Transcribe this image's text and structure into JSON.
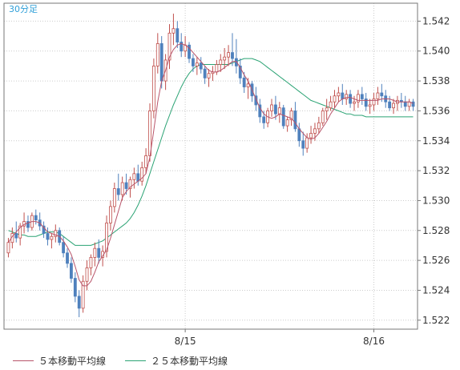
{
  "chart_data": {
    "type": "candlestick",
    "timeframe_label": "30分足",
    "y_ticks": [
      "1.542",
      "1.540",
      "1.538",
      "1.536",
      "1.534",
      "1.532",
      "1.530",
      "1.528",
      "1.526",
      "1.524",
      "1.522"
    ],
    "ylim": [
      1.5214,
      1.5432
    ],
    "x_ticks": [
      {
        "label": "8/15",
        "index": 45
      },
      {
        "label": "8/16",
        "index": 93
      }
    ],
    "candle_count": 104,
    "colors": {
      "up": "#c0504d",
      "down": "#4f81bd",
      "ma5": "#b8546a",
      "ma25": "#2ba374",
      "grid": "#cccccc",
      "frame": "#777777",
      "label": "#2f9fd8"
    },
    "candles": [
      [
        1.5265,
        1.5275,
        1.5262,
        1.5272
      ],
      [
        1.5272,
        1.5282,
        1.5268,
        1.5278
      ],
      [
        1.5278,
        1.5286,
        1.5272,
        1.5275
      ],
      [
        1.5275,
        1.5285,
        1.527,
        1.5283
      ],
      [
        1.5283,
        1.5292,
        1.5278,
        1.5286
      ],
      [
        1.5286,
        1.529,
        1.5279,
        1.5282
      ],
      [
        1.5282,
        1.5292,
        1.528,
        1.529
      ],
      [
        1.529,
        1.5294,
        1.5284,
        1.5287
      ],
      [
        1.5287,
        1.5292,
        1.528,
        1.5283
      ],
      [
        1.5283,
        1.5286,
        1.5275,
        1.5278
      ],
      [
        1.5278,
        1.5282,
        1.527,
        1.5274
      ],
      [
        1.5274,
        1.5278,
        1.5268,
        1.5276
      ],
      [
        1.5276,
        1.5284,
        1.5272,
        1.528
      ],
      [
        1.528,
        1.5282,
        1.527,
        1.5272
      ],
      [
        1.5272,
        1.5276,
        1.5262,
        1.5265
      ],
      [
        1.5265,
        1.5268,
        1.5255,
        1.5258
      ],
      [
        1.5258,
        1.5262,
        1.5245,
        1.5248
      ],
      [
        1.5248,
        1.5252,
        1.5232,
        1.5236
      ],
      [
        1.5236,
        1.524,
        1.5222,
        1.5228
      ],
      [
        1.5228,
        1.525,
        1.5225,
        1.5246
      ],
      [
        1.5246,
        1.526,
        1.524,
        1.5255
      ],
      [
        1.5255,
        1.5264,
        1.525,
        1.5262
      ],
      [
        1.5262,
        1.5272,
        1.5256,
        1.5268
      ],
      [
        1.5268,
        1.5274,
        1.5258,
        1.5262
      ],
      [
        1.5262,
        1.527,
        1.5256,
        1.5266
      ],
      [
        1.5266,
        1.529,
        1.5262,
        1.5285
      ],
      [
        1.5285,
        1.53,
        1.528,
        1.5296
      ],
      [
        1.5296,
        1.5312,
        1.5292,
        1.5308
      ],
      [
        1.5308,
        1.5318,
        1.53,
        1.5304
      ],
      [
        1.5304,
        1.5316,
        1.53,
        1.5312
      ],
      [
        1.5312,
        1.5318,
        1.5304,
        1.5308
      ],
      [
        1.5308,
        1.5316,
        1.5302,
        1.5314
      ],
      [
        1.5314,
        1.5322,
        1.5308,
        1.5318
      ],
      [
        1.5318,
        1.5324,
        1.531,
        1.5313
      ],
      [
        1.5313,
        1.5326,
        1.531,
        1.5322
      ],
      [
        1.5322,
        1.5335,
        1.5318,
        1.533
      ],
      [
        1.533,
        1.5365,
        1.5326,
        1.536
      ],
      [
        1.536,
        1.5395,
        1.5355,
        1.539
      ],
      [
        1.539,
        1.5412,
        1.5385,
        1.5405
      ],
      [
        1.5405,
        1.541,
        1.5375,
        1.538
      ],
      [
        1.538,
        1.5398,
        1.5374,
        1.5394
      ],
      [
        1.5394,
        1.5418,
        1.5388,
        1.5412
      ],
      [
        1.5412,
        1.5425,
        1.5404,
        1.5415
      ],
      [
        1.5415,
        1.542,
        1.5402,
        1.5406
      ],
      [
        1.5406,
        1.5412,
        1.5396,
        1.54
      ],
      [
        1.54,
        1.541,
        1.5396,
        1.5404
      ],
      [
        1.5404,
        1.5406,
        1.5392,
        1.5395
      ],
      [
        1.5395,
        1.5398,
        1.5386,
        1.539
      ],
      [
        1.539,
        1.5396,
        1.5384,
        1.5392
      ],
      [
        1.5392,
        1.5396,
        1.5385,
        1.5388
      ],
      [
        1.5388,
        1.539,
        1.5378,
        1.5382
      ],
      [
        1.5382,
        1.5388,
        1.5376,
        1.5385
      ],
      [
        1.5385,
        1.539,
        1.538,
        1.5386
      ],
      [
        1.5386,
        1.5394,
        1.5384,
        1.5391
      ],
      [
        1.5391,
        1.5398,
        1.5386,
        1.5394
      ],
      [
        1.5394,
        1.5402,
        1.5388,
        1.5396
      ],
      [
        1.5396,
        1.5404,
        1.539,
        1.5399
      ],
      [
        1.5399,
        1.5412,
        1.539,
        1.5395
      ],
      [
        1.5395,
        1.5408,
        1.5385,
        1.539
      ],
      [
        1.539,
        1.5395,
        1.5378,
        1.5382
      ],
      [
        1.5382,
        1.5386,
        1.5372,
        1.5376
      ],
      [
        1.5376,
        1.5382,
        1.5368,
        1.5378
      ],
      [
        1.5378,
        1.538,
        1.5366,
        1.537
      ],
      [
        1.537,
        1.5376,
        1.536,
        1.5364
      ],
      [
        1.5364,
        1.5368,
        1.5352,
        1.5356
      ],
      [
        1.5356,
        1.536,
        1.5348,
        1.5352
      ],
      [
        1.5352,
        1.5362,
        1.5349,
        1.536
      ],
      [
        1.536,
        1.5368,
        1.5356,
        1.5364
      ],
      [
        1.5364,
        1.537,
        1.5354,
        1.5358
      ],
      [
        1.5358,
        1.5366,
        1.5352,
        1.5362
      ],
      [
        1.5362,
        1.5364,
        1.5348,
        1.535
      ],
      [
        1.535,
        1.5356,
        1.5346,
        1.5354
      ],
      [
        1.5354,
        1.5362,
        1.535,
        1.536
      ],
      [
        1.536,
        1.5366,
        1.5346,
        1.5348
      ],
      [
        1.5348,
        1.5352,
        1.5336,
        1.534
      ],
      [
        1.534,
        1.5346,
        1.533,
        1.5335
      ],
      [
        1.5335,
        1.5345,
        1.5332,
        1.5342
      ],
      [
        1.5342,
        1.535,
        1.5338,
        1.5345
      ],
      [
        1.5345,
        1.5352,
        1.534,
        1.5348
      ],
      [
        1.5348,
        1.5356,
        1.5345,
        1.5352
      ],
      [
        1.5352,
        1.5362,
        1.535,
        1.536
      ],
      [
        1.536,
        1.5368,
        1.5354,
        1.5362
      ],
      [
        1.5362,
        1.537,
        1.536,
        1.5366
      ],
      [
        1.5366,
        1.5374,
        1.5362,
        1.537
      ],
      [
        1.537,
        1.5376,
        1.5366,
        1.5372
      ],
      [
        1.5372,
        1.5378,
        1.5364,
        1.5368
      ],
      [
        1.5368,
        1.5374,
        1.5364,
        1.5371
      ],
      [
        1.5371,
        1.5374,
        1.5362,
        1.5365
      ],
      [
        1.5365,
        1.537,
        1.536,
        1.5366
      ],
      [
        1.5366,
        1.5374,
        1.5362,
        1.5371
      ],
      [
        1.5371,
        1.5376,
        1.5364,
        1.5368
      ],
      [
        1.5368,
        1.5372,
        1.536,
        1.5363
      ],
      [
        1.5363,
        1.5368,
        1.5358,
        1.5364
      ],
      [
        1.5364,
        1.5372,
        1.536,
        1.5368
      ],
      [
        1.5368,
        1.5376,
        1.5364,
        1.5372
      ],
      [
        1.5372,
        1.5378,
        1.5366,
        1.537
      ],
      [
        1.537,
        1.5374,
        1.5362,
        1.5366
      ],
      [
        1.5366,
        1.537,
        1.536,
        1.5362
      ],
      [
        1.5362,
        1.5368,
        1.5358,
        1.5365
      ],
      [
        1.5365,
        1.537,
        1.536,
        1.5367
      ],
      [
        1.5367,
        1.5372,
        1.5362,
        1.5366
      ],
      [
        1.5366,
        1.537,
        1.536,
        1.5363
      ],
      [
        1.5363,
        1.5368,
        1.536,
        1.5366
      ],
      [
        1.5366,
        1.5368,
        1.536,
        1.5363
      ]
    ],
    "ma5": [
      1.5272,
      1.5276,
      1.5279,
      1.5282,
      1.5284,
      1.5285,
      1.5286,
      1.5286,
      1.5285,
      1.5282,
      1.5279,
      1.5278,
      1.5277,
      1.5276,
      1.5273,
      1.5269,
      1.5264,
      1.5256,
      1.5247,
      1.5243,
      1.5243,
      1.5246,
      1.5252,
      1.5259,
      1.5263,
      1.5267,
      1.5275,
      1.5284,
      1.5293,
      1.5302,
      1.5306,
      1.5309,
      1.5311,
      1.5313,
      1.5315,
      1.5318,
      1.5329,
      1.5347,
      1.5366,
      1.538,
      1.5387,
      1.5396,
      1.5401,
      1.5404,
      1.5405,
      1.5404,
      1.5402,
      1.5399,
      1.5396,
      1.5393,
      1.539,
      1.5387,
      1.5386,
      1.5386,
      1.5387,
      1.5389,
      1.5391,
      1.5393,
      1.5393,
      1.5389,
      1.5384,
      1.538,
      1.5374,
      1.5368,
      1.5362,
      1.5358,
      1.5356,
      1.5355,
      1.5356,
      1.5358,
      1.5357,
      1.5356,
      1.5355,
      1.5352,
      1.5348,
      1.5345,
      1.5342,
      1.5341,
      1.5342,
      1.5345,
      1.5349,
      1.5353,
      1.5358,
      1.5362,
      1.5366,
      1.5368,
      1.5369,
      1.5369,
      1.5368,
      1.5367,
      1.5367,
      1.5367,
      1.5367,
      1.5367,
      1.5367,
      1.5368,
      1.5368,
      1.5368,
      1.5367,
      1.5366,
      1.5366,
      1.5366,
      1.5366,
      1.5365
    ],
    "ma25": [
      1.528,
      1.5279,
      1.5278,
      1.5277,
      1.5277,
      1.5276,
      1.5276,
      1.5276,
      1.5277,
      1.5278,
      1.5279,
      1.5279,
      1.5279,
      1.5278,
      1.5276,
      1.5274,
      1.5272,
      1.527,
      1.527,
      1.527,
      1.527,
      1.527,
      1.5271,
      1.5272,
      1.5273,
      1.5275,
      1.5277,
      1.5279,
      1.5281,
      1.5283,
      1.5285,
      1.5288,
      1.5292,
      1.5297,
      1.5303,
      1.531,
      1.5318,
      1.5326,
      1.5334,
      1.5342,
      1.535,
      1.5357,
      1.5364,
      1.537,
      1.5376,
      1.5381,
      1.5385,
      1.5388,
      1.539,
      1.5391,
      1.5391,
      1.5391,
      1.5391,
      1.5391,
      1.5391,
      1.5391,
      1.5391,
      1.5392,
      1.5393,
      1.5394,
      1.5395,
      1.5395,
      1.5395,
      1.5394,
      1.5393,
      1.5391,
      1.5389,
      1.5387,
      1.5385,
      1.5383,
      1.5381,
      1.5379,
      1.5377,
      1.5375,
      1.5373,
      1.5371,
      1.5369,
      1.5367,
      1.5366,
      1.5365,
      1.5364,
      1.5363,
      1.5362,
      1.5361,
      1.536,
      1.5359,
      1.5358,
      1.5358,
      1.5357,
      1.5357,
      1.5357,
      1.5356,
      1.5356,
      1.5356,
      1.5356,
      1.5356,
      1.5356,
      1.5356,
      1.5356,
      1.5356,
      1.5356,
      1.5356,
      1.5356,
      1.5356
    ],
    "legend": {
      "ma5_label": "５本移動平均線",
      "ma25_label": "２５本移動平均線"
    }
  }
}
